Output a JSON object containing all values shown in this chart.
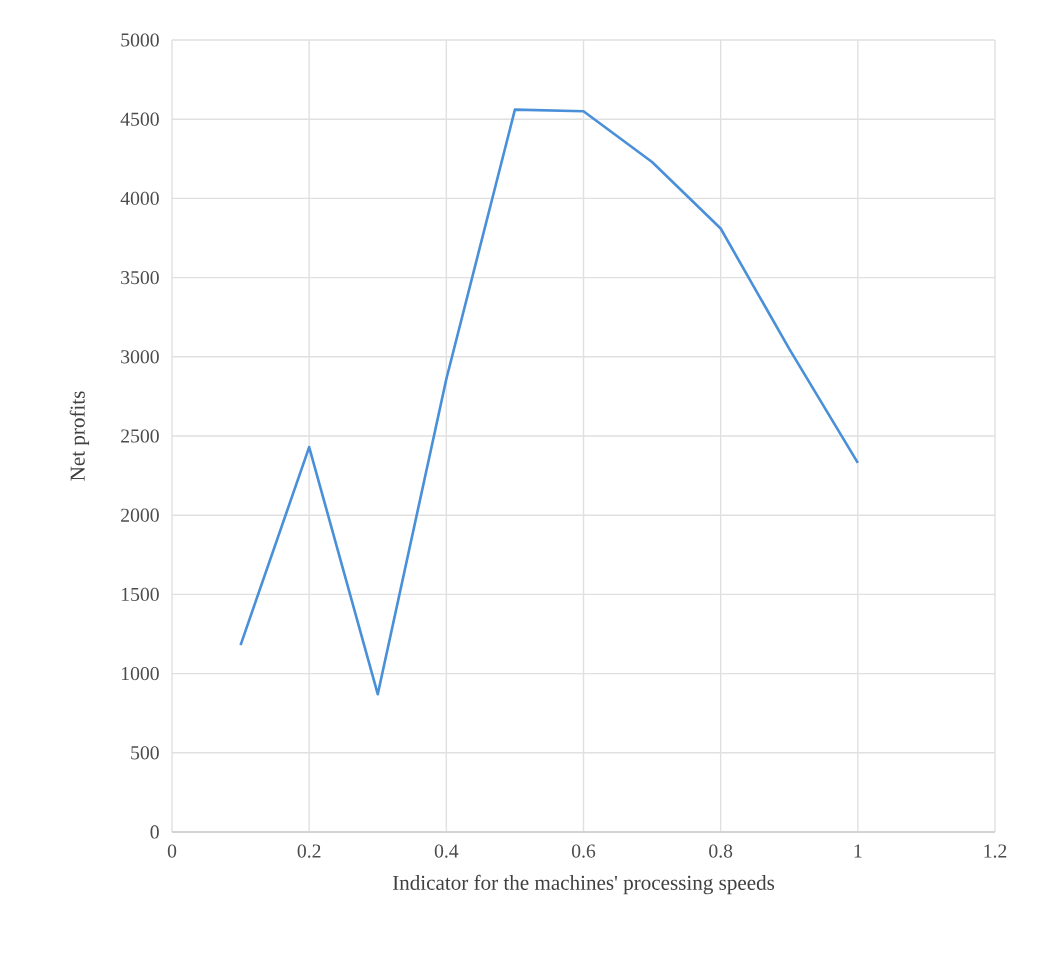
{
  "chart_data": {
    "type": "line",
    "xlabel": "Indicator for the machines' processing speeds",
    "ylabel": "Net profits",
    "x": [
      0.1,
      0.2,
      0.3,
      0.4,
      0.5,
      0.6,
      0.7,
      0.8,
      0.9,
      1.0
    ],
    "series": [
      {
        "color": "#4a90d9",
        "values": [
          1180,
          2430,
          870,
          2860,
          4560,
          4550,
          4230,
          3810,
          3050,
          2330
        ]
      }
    ],
    "xlim": [
      0,
      1.2
    ],
    "xticks": [
      0,
      0.2,
      0.4,
      0.6,
      0.8,
      1,
      1.2
    ],
    "ylim": [
      0,
      5000
    ],
    "yticks": [
      0,
      500,
      1000,
      1500,
      2000,
      2500,
      3000,
      3500,
      4000,
      4500,
      5000
    ],
    "grid": true,
    "marker": "none",
    "line_style": "solid"
  }
}
